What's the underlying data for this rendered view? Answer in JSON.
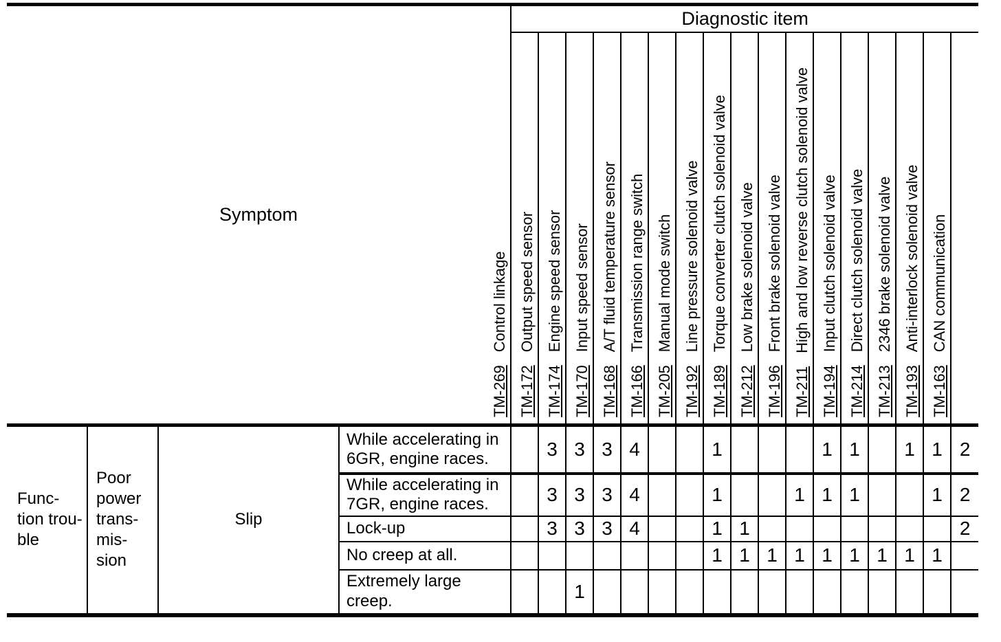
{
  "page": {
    "background": "#ffffff",
    "text_color": "#000000",
    "border_color": "#000000"
  },
  "table": {
    "symptom_header": "Symptom",
    "diagnostic_header": "Diagnostic item",
    "diagnostic_items": [
      {
        "ref": "TM-269",
        "label": "Control linkage"
      },
      {
        "ref": "TM-172",
        "label": "Output speed sensor"
      },
      {
        "ref": "TM-174",
        "label": "Engine speed sensor"
      },
      {
        "ref": "TM-170",
        "label": "Input speed sensor"
      },
      {
        "ref": "TM-168",
        "label": "A/T fluid temperature sensor"
      },
      {
        "ref": "TM-166",
        "label": "Transmission range switch"
      },
      {
        "ref": "TM-205",
        "label": "Manual mode switch"
      },
      {
        "ref": "TM-192",
        "label": "Line pressure solenoid valve"
      },
      {
        "ref": "TM-189",
        "label": "Torque converter clutch solenoid valve"
      },
      {
        "ref": "TM-212",
        "label": "Low brake solenoid valve"
      },
      {
        "ref": "TM-196",
        "label": "Front brake solenoid valve"
      },
      {
        "ref": "TM-211",
        "label": "High and low reverse clutch solenoid valve"
      },
      {
        "ref": "TM-194",
        "label": "Input clutch solenoid valve"
      },
      {
        "ref": "TM-214",
        "label": "Direct clutch solenoid valve"
      },
      {
        "ref": "TM-213",
        "label": "2346 brake solenoid valve"
      },
      {
        "ref": "TM-193",
        "label": "Anti-interlock solenoid valve"
      },
      {
        "ref": "TM-163",
        "label": "CAN communication"
      }
    ],
    "category": "Func-\ntion trou-\nble",
    "subcategory": "Poor\npower\ntrans-\nmis-\nsion",
    "symptom_type": "Slip",
    "rows": [
      {
        "symptom": "While accelerating in\n6GR, engine races.",
        "values": [
          "",
          "3",
          "3",
          "3",
          "4",
          "",
          "",
          "1",
          "",
          "",
          "",
          "1",
          "1",
          "",
          "1",
          "1",
          "2"
        ]
      },
      {
        "symptom": "While accelerating in\n7GR, engine races.",
        "values": [
          "",
          "3",
          "3",
          "3",
          "4",
          "",
          "",
          "1",
          "",
          "",
          "1",
          "1",
          "1",
          "",
          "",
          "1",
          "2"
        ]
      },
      {
        "symptom": "Lock-up",
        "values": [
          "",
          "3",
          "3",
          "3",
          "4",
          "",
          "",
          "1",
          "1",
          "",
          "",
          "",
          "",
          "",
          "",
          "",
          "2"
        ]
      },
      {
        "symptom": "No creep at all.",
        "values": [
          "",
          "",
          "",
          "",
          "",
          "",
          "",
          "1",
          "1",
          "1",
          "1",
          "1",
          "1",
          "1",
          "1",
          "1",
          ""
        ]
      },
      {
        "symptom": "Extremely large\ncreep.",
        "values": [
          "",
          "",
          "1",
          "",
          "",
          "",
          "",
          "",
          "",
          "",
          "",
          "",
          "",
          "",
          "",
          "",
          ""
        ]
      }
    ]
  }
}
